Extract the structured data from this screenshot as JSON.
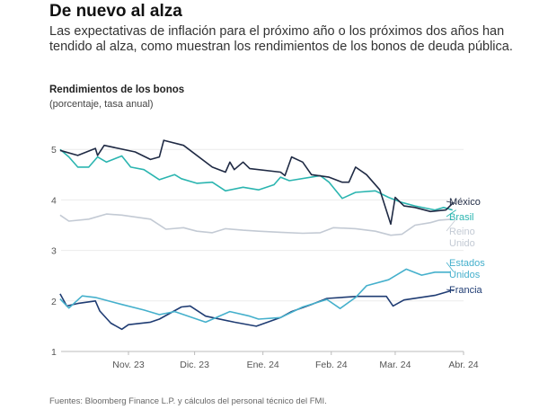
{
  "header": {
    "title": "De nuevo al alza",
    "subtitle": "Las expectativas de inflación para el próximo año o los próximos dos años han tendido al alza, como muestran los rendimientos de los bonos de deuda pública."
  },
  "footer": {
    "source": "Fuentes: Bloomberg Finance L.P. y cálculos del personal técnico del FMI."
  },
  "chart_data": {
    "type": "line",
    "title": "Rendimientos de los bonos",
    "subtitle": "(porcentaje, tasa anual)",
    "ylim": [
      1,
      5
    ],
    "yticks": [
      "1",
      "2",
      "3",
      "4",
      "5"
    ],
    "xticks": [
      {
        "date": "2023-11-01",
        "label": "Nov. 23"
      },
      {
        "date": "2023-12-01",
        "label": "Dic. 23"
      },
      {
        "date": "2024-01-01",
        "label": "Ene. 24"
      },
      {
        "date": "2024-02-01",
        "label": "Feb. 24"
      },
      {
        "date": "2024-03-01",
        "label": "Mar. 24"
      },
      {
        "date": "2024-04-01",
        "label": "Abr. 24"
      }
    ],
    "grid": true,
    "legend": "inline-right",
    "series": [
      {
        "name": "México",
        "label_lines": [
          "México"
        ],
        "color": "#1f2a44",
        "points": [
          [
            "2023-10-01",
            4.98
          ],
          [
            "2023-10-09",
            4.88
          ],
          [
            "2023-10-17",
            5.02
          ],
          [
            "2023-10-18",
            4.88
          ],
          [
            "2023-10-21",
            5.08
          ],
          [
            "2023-11-04",
            4.95
          ],
          [
            "2023-11-11",
            4.8
          ],
          [
            "2023-11-15",
            4.85
          ],
          [
            "2023-11-17",
            5.18
          ],
          [
            "2023-11-26",
            5.08
          ],
          [
            "2023-12-09",
            4.65
          ],
          [
            "2023-12-15",
            4.55
          ],
          [
            "2023-12-17",
            4.75
          ],
          [
            "2023-12-19",
            4.6
          ],
          [
            "2023-12-23",
            4.75
          ],
          [
            "2023-12-26",
            4.62
          ],
          [
            "2024-01-09",
            4.55
          ],
          [
            "2024-01-11",
            4.48
          ],
          [
            "2024-01-14",
            4.85
          ],
          [
            "2024-01-19",
            4.75
          ],
          [
            "2024-01-23",
            4.5
          ],
          [
            "2024-01-31",
            4.45
          ],
          [
            "2024-02-06",
            4.35
          ],
          [
            "2024-02-09",
            4.35
          ],
          [
            "2024-02-12",
            4.65
          ],
          [
            "2024-02-17",
            4.5
          ],
          [
            "2024-02-23",
            4.2
          ],
          [
            "2024-02-28",
            3.52
          ],
          [
            "2024-03-01",
            4.05
          ],
          [
            "2024-03-05",
            3.88
          ],
          [
            "2024-03-10",
            3.85
          ],
          [
            "2024-03-17",
            3.77
          ],
          [
            "2024-03-24",
            3.8
          ],
          [
            "2024-03-27",
            3.93
          ]
        ]
      },
      {
        "name": "Brasil",
        "label_lines": [
          "Brasil"
        ],
        "color": "#2bb5b0",
        "points": [
          [
            "2023-10-01",
            5.0
          ],
          [
            "2023-10-05",
            4.85
          ],
          [
            "2023-10-09",
            4.65
          ],
          [
            "2023-10-14",
            4.65
          ],
          [
            "2023-10-18",
            4.85
          ],
          [
            "2023-10-22",
            4.75
          ],
          [
            "2023-10-29",
            4.87
          ],
          [
            "2023-11-02",
            4.65
          ],
          [
            "2023-11-08",
            4.6
          ],
          [
            "2023-11-15",
            4.4
          ],
          [
            "2023-11-22",
            4.5
          ],
          [
            "2023-11-25",
            4.42
          ],
          [
            "2023-12-02",
            4.33
          ],
          [
            "2023-12-09",
            4.35
          ],
          [
            "2023-12-15",
            4.18
          ],
          [
            "2023-12-23",
            4.25
          ],
          [
            "2023-12-30",
            4.2
          ],
          [
            "2024-01-06",
            4.3
          ],
          [
            "2024-01-09",
            4.45
          ],
          [
            "2024-01-13",
            4.38
          ],
          [
            "2024-01-27",
            4.48
          ],
          [
            "2024-01-31",
            4.35
          ],
          [
            "2024-02-06",
            4.03
          ],
          [
            "2024-02-12",
            4.15
          ],
          [
            "2024-02-21",
            4.18
          ],
          [
            "2024-02-27",
            4.05
          ],
          [
            "2024-03-04",
            3.95
          ],
          [
            "2024-03-10",
            3.88
          ],
          [
            "2024-03-19",
            3.8
          ],
          [
            "2024-03-23",
            3.85
          ],
          [
            "2024-03-27",
            3.8
          ]
        ]
      },
      {
        "name": "Reino Unido",
        "label_lines": [
          "Reino",
          "Unido"
        ],
        "color": "#c3cad4",
        "points": [
          [
            "2023-10-01",
            3.7
          ],
          [
            "2023-10-05",
            3.58
          ],
          [
            "2023-10-14",
            3.62
          ],
          [
            "2023-10-22",
            3.72
          ],
          [
            "2023-10-29",
            3.7
          ],
          [
            "2023-11-11",
            3.62
          ],
          [
            "2023-11-18",
            3.42
          ],
          [
            "2023-11-26",
            3.45
          ],
          [
            "2023-12-02",
            3.38
          ],
          [
            "2023-12-09",
            3.35
          ],
          [
            "2023-12-15",
            3.43
          ],
          [
            "2023-12-23",
            3.4
          ],
          [
            "2023-12-30",
            3.38
          ],
          [
            "2024-01-09",
            3.36
          ],
          [
            "2024-01-19",
            3.34
          ],
          [
            "2024-01-27",
            3.35
          ],
          [
            "2024-02-02",
            3.45
          ],
          [
            "2024-02-12",
            3.43
          ],
          [
            "2024-02-21",
            3.38
          ],
          [
            "2024-02-28",
            3.3
          ],
          [
            "2024-03-04",
            3.32
          ],
          [
            "2024-03-10",
            3.5
          ],
          [
            "2024-03-17",
            3.55
          ],
          [
            "2024-03-21",
            3.6
          ],
          [
            "2024-03-27",
            3.62
          ]
        ]
      },
      {
        "name": "Estados Unidos",
        "label_lines": [
          "Estados",
          "Unidos"
        ],
        "color": "#45b0cc",
        "points": [
          [
            "2023-10-01",
            2.04
          ],
          [
            "2023-10-05",
            1.86
          ],
          [
            "2023-10-11",
            2.1
          ],
          [
            "2023-10-17",
            2.07
          ],
          [
            "2023-10-29",
            1.93
          ],
          [
            "2023-11-08",
            1.82
          ],
          [
            "2023-11-15",
            1.73
          ],
          [
            "2023-11-22",
            1.79
          ],
          [
            "2023-12-06",
            1.58
          ],
          [
            "2023-12-17",
            1.79
          ],
          [
            "2023-12-26",
            1.7
          ],
          [
            "2023-12-30",
            1.64
          ],
          [
            "2024-01-09",
            1.67
          ],
          [
            "2024-01-19",
            1.88
          ],
          [
            "2024-01-30",
            2.03
          ],
          [
            "2024-02-05",
            1.85
          ],
          [
            "2024-02-12",
            2.07
          ],
          [
            "2024-02-17",
            2.3
          ],
          [
            "2024-02-27",
            2.42
          ],
          [
            "2024-03-06",
            2.63
          ],
          [
            "2024-03-13",
            2.51
          ],
          [
            "2024-03-19",
            2.57
          ],
          [
            "2024-03-26",
            2.57
          ]
        ]
      },
      {
        "name": "Francia",
        "label_lines": [
          "Francia"
        ],
        "color": "#1f3c73",
        "points": [
          [
            "2023-10-01",
            2.14
          ],
          [
            "2023-10-04",
            1.9
          ],
          [
            "2023-10-09",
            1.95
          ],
          [
            "2023-10-17",
            2.0
          ],
          [
            "2023-10-19",
            1.8
          ],
          [
            "2023-10-24",
            1.56
          ],
          [
            "2023-10-29",
            1.44
          ],
          [
            "2023-11-01",
            1.53
          ],
          [
            "2023-11-11",
            1.58
          ],
          [
            "2023-11-15",
            1.64
          ],
          [
            "2023-11-25",
            1.88
          ],
          [
            "2023-11-29",
            1.9
          ],
          [
            "2023-12-06",
            1.7
          ],
          [
            "2023-12-19",
            1.58
          ],
          [
            "2023-12-29",
            1.5
          ],
          [
            "2024-01-09",
            1.67
          ],
          [
            "2024-01-14",
            1.79
          ],
          [
            "2024-01-23",
            1.93
          ],
          [
            "2024-01-30",
            2.05
          ],
          [
            "2024-02-13",
            2.09
          ],
          [
            "2024-02-26",
            2.09
          ],
          [
            "2024-02-29",
            1.9
          ],
          [
            "2024-03-05",
            2.02
          ],
          [
            "2024-03-19",
            2.11
          ],
          [
            "2024-03-26",
            2.2
          ]
        ]
      }
    ]
  }
}
